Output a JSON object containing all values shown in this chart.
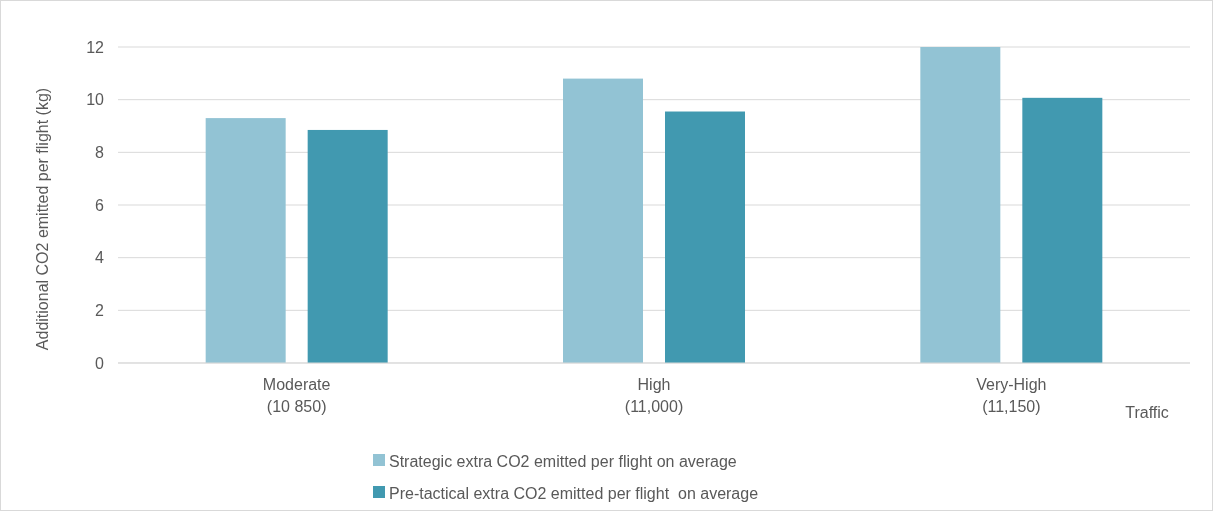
{
  "chart_data": {
    "type": "bar",
    "categories": [
      "Moderate\n(10 850)",
      "High\n(11,000)",
      "Very-High\n(11,150)"
    ],
    "series": [
      {
        "name": "Strategic extra CO2 emitted per flight on average",
        "color": "#92c3d4",
        "values": [
          9.3,
          10.8,
          12.0
        ]
      },
      {
        "name": "Pre-tactical extra CO2 emitted per flight  on average",
        "color": "#4199b0",
        "values": [
          8.85,
          9.55,
          10.07
        ]
      }
    ],
    "ylabel": "Additional CO2 emitted per flight (kg)",
    "xlabel": "Traffic",
    "ylim": [
      0,
      12
    ],
    "yticks": [
      0,
      2,
      4,
      6,
      8,
      10,
      12
    ],
    "grid": "y",
    "legend": "bottom"
  }
}
